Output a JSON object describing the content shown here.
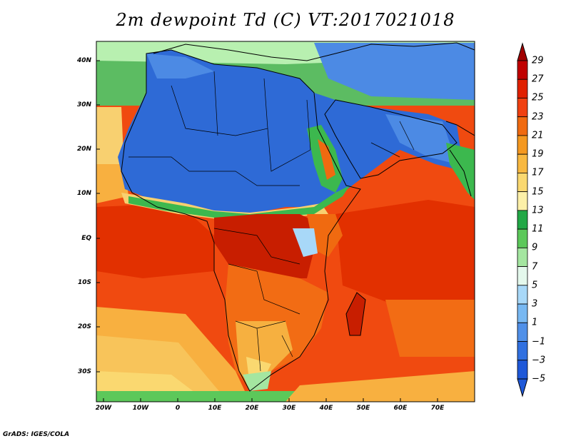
{
  "title": "2m dewpoint Td (C) VT:2017021018",
  "credit": "GrADS: IGES/COLA",
  "map": {
    "lat_ticks": [
      "40N",
      "30N",
      "20N",
      "10N",
      "EQ",
      "10S",
      "20S",
      "30S"
    ],
    "lon_ticks": [
      "20W",
      "10W",
      "0",
      "10E",
      "20E",
      "30E",
      "40E",
      "50E",
      "60E",
      "70E"
    ]
  },
  "colorbar": {
    "labels": [
      "29",
      "27",
      "25",
      "23",
      "21",
      "19",
      "17",
      "15",
      "13",
      "11",
      "9",
      "7",
      "5",
      "3",
      "1",
      "−1",
      "−3",
      "−5"
    ],
    "colors": [
      "#a00000",
      "#c00000",
      "#e02000",
      "#f04010",
      "#f06a10",
      "#f49820",
      "#f8b840",
      "#fad870",
      "#fcf0a8",
      "#22a846",
      "#5cc85a",
      "#a4e6a0",
      "#e4f8ec",
      "#a8d8f8",
      "#78b8f2",
      "#5090e8",
      "#3070e0",
      "#1e58d8"
    ]
  },
  "palette": {
    "ocean_warm": "#f04a10",
    "ocean_hot": "#e23000",
    "ocean_mid": "#f26c14",
    "ocean_cool": "#f5a030",
    "sahara": "#2e6ad6",
    "sahara_light": "#4c8ae4",
    "central_africa": "#c81e00",
    "southern_africa": "#f6b040",
    "green_band": "#3cb84e",
    "light_band": "#b8f0b0",
    "med_sea": "#5cbc62",
    "ocean_south": "#f8c45a"
  }
}
